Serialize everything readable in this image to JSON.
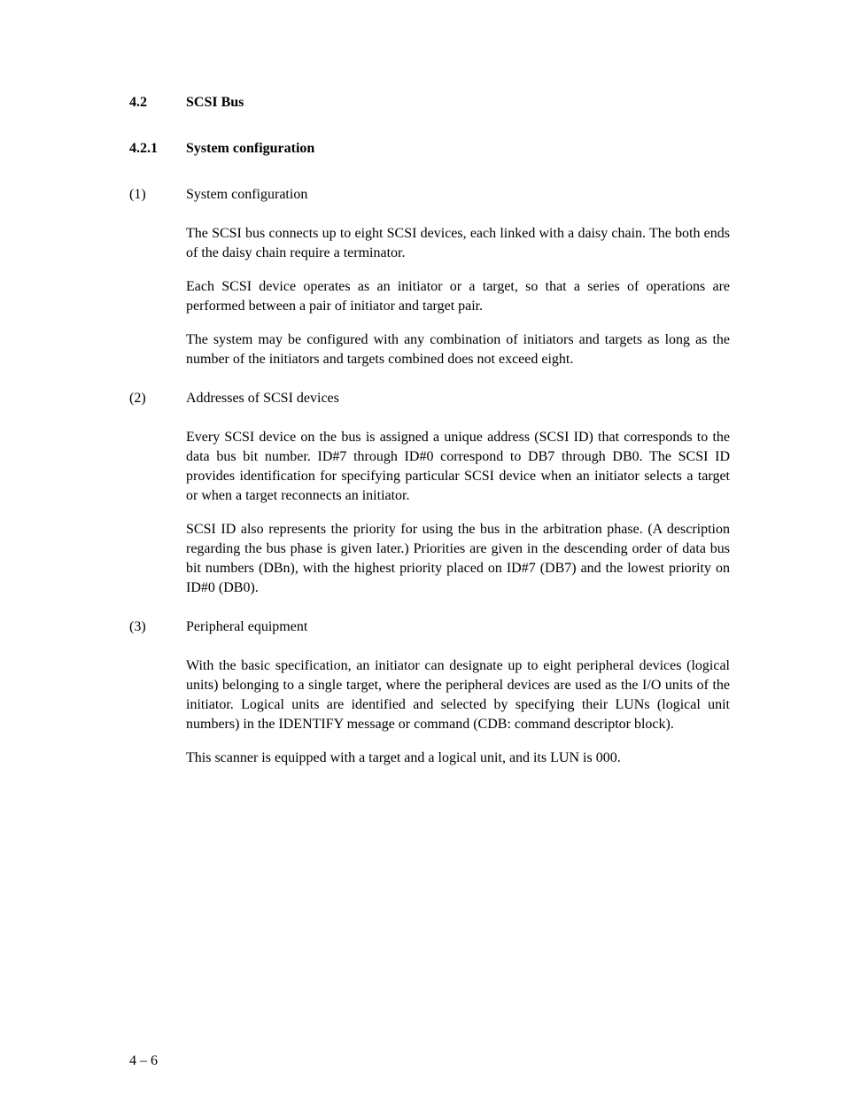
{
  "colors": {
    "background": "#ffffff",
    "text": "#000000"
  },
  "typography": {
    "body_fontsize_pt": 12,
    "heading_weight": "bold",
    "family": "Century Schoolbook / serif"
  },
  "section": {
    "number": "4.2",
    "title": "SCSI Bus"
  },
  "subsection": {
    "number": "4.2.1",
    "title": "System configuration"
  },
  "items": [
    {
      "marker": "(1)",
      "heading": "System configuration",
      "paragraphs": [
        "The SCSI bus connects up to eight SCSI devices, each linked with a daisy chain. The both ends of the daisy chain require a terminator.",
        "Each SCSI device operates as an initiator or a target, so that a series of operations are performed between a pair of initiator and target pair.",
        "The system may be configured with any combination of initiators and targets as long as the number of the initiators and targets combined does not exceed eight."
      ]
    },
    {
      "marker": "(2)",
      "heading": "Addresses of SCSI devices",
      "paragraphs": [
        "Every SCSI device on the bus is assigned a unique address (SCSI ID) that corresponds to the data bus bit number.  ID#7 through ID#0 correspond to DB7 through DB0.  The SCSI ID provides identification for specifying particular SCSI device when an initiator selects a target or when a target reconnects an initiator.",
        "SCSI ID also represents the priority for using the bus in the arbitration phase.  (A description regarding the bus phase is given later.)  Priorities are given in the descending order of data bus bit numbers (DBn), with the highest priority placed on ID#7 (DB7) and the lowest priority on ID#0 (DB0)."
      ]
    },
    {
      "marker": "(3)",
      "heading": "Peripheral equipment",
      "paragraphs": [
        "With the basic specification, an initiator can designate up to eight peripheral devices (logical units) belonging to a single target, where the peripheral devices are used as the I/O units of the initiator.  Logical units are identified and selected by specifying their LUNs (logical unit numbers) in the IDENTIFY message or command (CDB:  command descriptor block).",
        "This scanner is equipped with a target and a logical unit, and its LUN is 000."
      ]
    }
  ],
  "page_number": "4 – 6"
}
